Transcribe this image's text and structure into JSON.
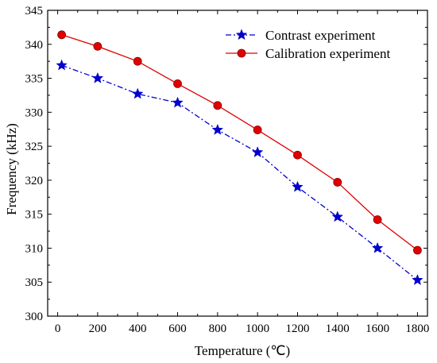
{
  "chart_data": {
    "type": "line",
    "title": "",
    "xlabel": "Temperature (℃)",
    "ylabel": "Frequency (kHz)",
    "xlim": [
      -50,
      1850
    ],
    "ylim": [
      300,
      345
    ],
    "xticks": [
      0,
      200,
      400,
      600,
      800,
      1000,
      1200,
      1400,
      1600,
      1800
    ],
    "yticks": [
      300,
      305,
      310,
      315,
      320,
      325,
      330,
      335,
      340,
      345
    ],
    "grid": false,
    "legend_position": "top-right",
    "series": [
      {
        "name": "Contrast  experiment",
        "color": "#0000cc",
        "marker": "star",
        "line_style": "dash-dot",
        "x": [
          20,
          200,
          400,
          600,
          800,
          1000,
          1200,
          1400,
          1600,
          1800
        ],
        "y": [
          336.9,
          335.0,
          332.7,
          331.4,
          327.4,
          324.1,
          319.0,
          314.6,
          310.0,
          305.3
        ]
      },
      {
        "name": "Calibration experiment",
        "color": "#e00000",
        "marker": "circle",
        "line_style": "solid",
        "x": [
          20,
          200,
          400,
          600,
          800,
          1000,
          1200,
          1400,
          1600,
          1800
        ],
        "y": [
          341.4,
          339.7,
          337.5,
          334.2,
          331.0,
          327.4,
          323.7,
          319.7,
          314.2,
          309.7
        ]
      }
    ]
  }
}
